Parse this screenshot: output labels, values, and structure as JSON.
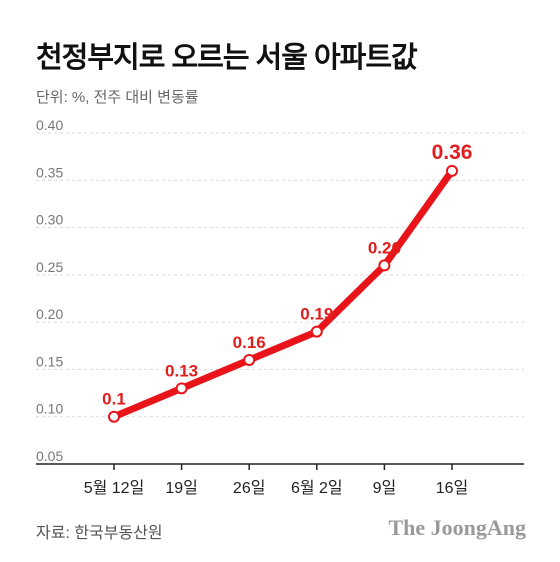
{
  "header": {
    "title": "천정부지로 오르는 서울 아파트값",
    "unit": "단위: %, 전주 대비 변동률"
  },
  "footer": {
    "source": "자료: 한국부동산원",
    "brand": "The JoongAng"
  },
  "colors": {
    "line": "#e8141a",
    "label": "#e01e1e",
    "grid": "#d9d9d9"
  },
  "chart_data": {
    "type": "line",
    "categories": [
      "5월 12일",
      "19일",
      "26일",
      "6월 2일",
      "9일",
      "16일"
    ],
    "series": [
      {
        "values": [
          0.1,
          0.13,
          0.16,
          0.19,
          0.26,
          0.36
        ]
      }
    ],
    "data_labels": [
      "0.1",
      "0.13",
      "0.16",
      "0.19",
      "0.26",
      "0.36"
    ],
    "y_ticks": [
      "0.05",
      "0.10",
      "0.15",
      "0.20",
      "0.25",
      "0.30",
      "0.35",
      "0.40"
    ],
    "ylim": [
      0.05,
      0.4
    ],
    "grid": true
  }
}
